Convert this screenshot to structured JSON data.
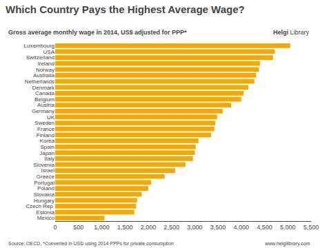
{
  "chart_data": {
    "type": "bar",
    "orientation": "horizontal",
    "title": "Which Country Pays the Highest Average Wage?",
    "subtitle": "Gross average monthly wage in 2014, US$ adjusted for PPP*",
    "annotations": [
      "Helgi",
      "Library",
      "Source: OECD, *Converted in USD using 2014 PPPs for private consumption",
      "www.helgilibrary.com"
    ],
    "categories": [
      "Luxembourg",
      "USA",
      "Switzerland",
      "Ireland",
      "Norway",
      "Australia",
      "Netherlands",
      "Denmark",
      "Canada",
      "Belgium",
      "Austria",
      "Germany",
      "UK",
      "Sweden",
      "France",
      "Finland",
      "Korea",
      "Spain",
      "Japan",
      "Italy",
      "Slovenia",
      "Israel",
      "Greece",
      "Portugal",
      "Poland",
      "Slovakia",
      "Hungary",
      "Czech Rep.",
      "Estonia",
      "Mexico"
    ],
    "values": [
      5050,
      4720,
      4680,
      4400,
      4380,
      4320,
      4280,
      4150,
      4050,
      4000,
      3780,
      3600,
      3480,
      3440,
      3420,
      3350,
      3080,
      3020,
      3000,
      2960,
      2800,
      2580,
      2350,
      2060,
      2000,
      1860,
      1760,
      1740,
      1700,
      1060
    ],
    "color": "#F5A800",
    "xlim": [
      0,
      5500
    ],
    "xticks": [
      0,
      500,
      {
        "value": 1000,
        "label": "1,000"
      },
      {
        "value": 1500,
        "label": "1,500"
      },
      {
        "value": 2000,
        "label": "2,000"
      },
      {
        "value": 2500,
        "label": "2,500"
      },
      {
        "value": 3000,
        "label": "3,000"
      },
      {
        "value": 3500,
        "label": "3,500"
      },
      {
        "value": 4000,
        "label": "4,000"
      },
      {
        "value": 4500,
        "label": "4,500"
      },
      {
        "value": 5000,
        "label": "5,000"
      },
      {
        "value": 5500,
        "label": "5,500"
      }
    ],
    "grid": false
  }
}
